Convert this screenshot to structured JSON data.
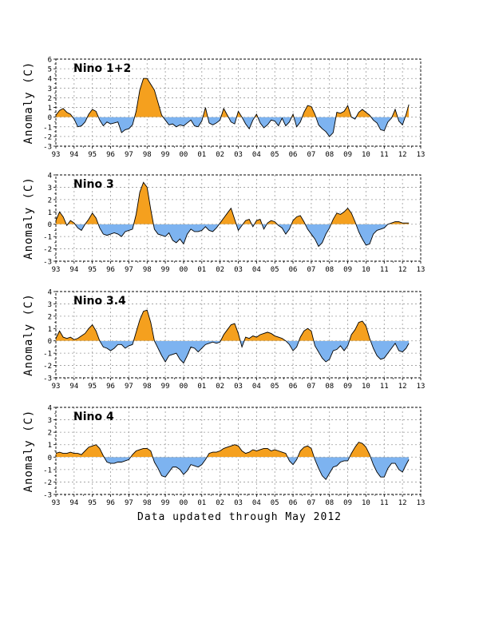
{
  "footer": "Data updated through May 2012",
  "colors": {
    "positive": "#f5a01e",
    "negative": "#7db3f0",
    "line": "#000000",
    "grid": "#9a9a9a"
  },
  "chart_data": [
    {
      "type": "area",
      "title": "Nino 1+2",
      "ylabel": "Anomaly (C)",
      "ylim": [
        -3,
        6
      ],
      "yticks": [
        -3,
        -2,
        -1,
        0,
        1,
        2,
        3,
        4,
        5,
        6
      ],
      "xlim": [
        1993,
        2013
      ],
      "xtick_labels": [
        "93",
        "94",
        "95",
        "96",
        "97",
        "98",
        "99",
        "00",
        "01",
        "02",
        "03",
        "04",
        "05",
        "06",
        "07",
        "08",
        "09",
        "10",
        "11",
        "12",
        "13"
      ],
      "grid": true,
      "series": [
        {
          "x": [
            1993.0,
            1993.2,
            1993.4,
            1993.6,
            1993.8,
            1994.0,
            1994.2,
            1994.4,
            1994.6,
            1994.8,
            1995.0,
            1995.2,
            1995.4,
            1995.6,
            1995.8,
            1996.0,
            1996.2,
            1996.4,
            1996.6,
            1996.8,
            1997.0,
            1997.2,
            1997.4,
            1997.6,
            1997.8,
            1998.0,
            1998.2,
            1998.4,
            1998.6,
            1998.8,
            1999.0,
            1999.2,
            1999.4,
            1999.6,
            1999.8,
            2000.0,
            2000.2,
            2000.4,
            2000.6,
            2000.8,
            2001.0,
            2001.2,
            2001.4,
            2001.6,
            2001.8,
            2002.0,
            2002.2,
            2002.4,
            2002.6,
            2002.8,
            2003.0,
            2003.2,
            2003.4,
            2003.6,
            2003.8,
            2004.0,
            2004.2,
            2004.4,
            2004.6,
            2004.8,
            2005.0,
            2005.2,
            2005.4,
            2005.6,
            2005.8,
            2006.0,
            2006.2,
            2006.4,
            2006.6,
            2006.8,
            2007.0,
            2007.2,
            2007.4,
            2007.6,
            2007.8,
            2008.0,
            2008.2,
            2008.4,
            2008.6,
            2008.8,
            2009.0,
            2009.2,
            2009.4,
            2009.6,
            2009.8,
            2010.0,
            2010.2,
            2010.4,
            2010.6,
            2010.8,
            2011.0,
            2011.2,
            2011.4,
            2011.6,
            2011.8,
            2012.0,
            2012.2,
            2012.35
          ],
          "values": [
            0.2,
            0.7,
            0.9,
            0.5,
            0.3,
            -0.2,
            -1.0,
            -0.9,
            -0.5,
            0.3,
            0.8,
            0.6,
            -0.3,
            -0.9,
            -0.5,
            -0.7,
            -0.6,
            -0.5,
            -1.6,
            -1.3,
            -1.2,
            -0.8,
            0.6,
            2.8,
            4.0,
            4.0,
            3.4,
            2.8,
            1.5,
            0.2,
            -0.3,
            -0.8,
            -0.7,
            -1.0,
            -0.8,
            -0.9,
            -0.6,
            -0.3,
            -0.9,
            -1.0,
            -0.4,
            1.0,
            -0.6,
            -0.8,
            -0.6,
            -0.3,
            0.9,
            0.2,
            -0.5,
            -0.7,
            0.6,
            0.0,
            -0.7,
            -1.2,
            -0.3,
            0.3,
            -0.6,
            -1.1,
            -0.8,
            -0.3,
            -0.4,
            -0.9,
            -0.1,
            -0.9,
            -0.5,
            0.3,
            -1.0,
            -0.5,
            0.5,
            1.2,
            1.1,
            0.3,
            -0.8,
            -1.2,
            -1.5,
            -2.0,
            -1.6,
            0.5,
            0.4,
            0.6,
            1.2,
            0.0,
            -0.2,
            0.5,
            0.8,
            0.5,
            0.2,
            -0.3,
            -0.6,
            -1.3,
            -1.4,
            -0.5,
            -0.1,
            0.8,
            -0.4,
            -0.8,
            0.3,
            1.3
          ]
        }
      ]
    },
    {
      "type": "area",
      "title": "Nino 3",
      "ylabel": "Anomaly (C)",
      "ylim": [
        -3,
        4
      ],
      "yticks": [
        -3,
        -2,
        -1,
        0,
        1,
        2,
        3,
        4
      ],
      "xlim": [
        1993,
        2013
      ],
      "xtick_labels": [
        "93",
        "94",
        "95",
        "96",
        "97",
        "98",
        "99",
        "00",
        "01",
        "02",
        "03",
        "04",
        "05",
        "06",
        "07",
        "08",
        "09",
        "10",
        "11",
        "12",
        "13"
      ],
      "grid": true,
      "series": [
        {
          "x": [
            1993.0,
            1993.2,
            1993.4,
            1993.6,
            1993.8,
            1994.0,
            1994.2,
            1994.4,
            1994.6,
            1994.8,
            1995.0,
            1995.2,
            1995.4,
            1995.6,
            1995.8,
            1996.0,
            1996.2,
            1996.4,
            1996.6,
            1996.8,
            1997.0,
            1997.2,
            1997.4,
            1997.6,
            1997.8,
            1998.0,
            1998.2,
            1998.4,
            1998.6,
            1998.8,
            1999.0,
            1999.2,
            1999.4,
            1999.6,
            1999.8,
            2000.0,
            2000.2,
            2000.4,
            2000.6,
            2000.8,
            2001.0,
            2001.2,
            2001.4,
            2001.6,
            2001.8,
            2002.0,
            2002.2,
            2002.4,
            2002.6,
            2002.8,
            2003.0,
            2003.2,
            2003.4,
            2003.6,
            2003.8,
            2004.0,
            2004.2,
            2004.4,
            2004.6,
            2004.8,
            2005.0,
            2005.2,
            2005.4,
            2005.6,
            2005.8,
            2006.0,
            2006.2,
            2006.4,
            2006.6,
            2006.8,
            2007.0,
            2007.2,
            2007.4,
            2007.6,
            2007.8,
            2008.0,
            2008.2,
            2008.4,
            2008.6,
            2008.8,
            2009.0,
            2009.2,
            2009.4,
            2009.6,
            2009.8,
            2010.0,
            2010.2,
            2010.4,
            2010.6,
            2010.8,
            2011.0,
            2011.2,
            2011.4,
            2011.6,
            2011.8,
            2012.0,
            2012.2,
            2012.35
          ],
          "values": [
            0.3,
            1.0,
            0.6,
            -0.1,
            0.3,
            0.1,
            -0.3,
            -0.5,
            0.0,
            0.4,
            0.9,
            0.5,
            -0.3,
            -0.8,
            -0.9,
            -0.8,
            -0.7,
            -0.8,
            -1.0,
            -0.6,
            -0.5,
            -0.4,
            0.8,
            2.6,
            3.4,
            3.0,
            1.2,
            -0.4,
            -0.8,
            -0.9,
            -1.0,
            -0.7,
            -1.3,
            -1.5,
            -1.2,
            -1.6,
            -0.8,
            -0.4,
            -0.6,
            -0.6,
            -0.5,
            -0.2,
            -0.5,
            -0.6,
            -0.3,
            0.1,
            0.5,
            0.9,
            1.3,
            0.4,
            -0.5,
            -0.1,
            0.3,
            0.4,
            -0.2,
            0.3,
            0.4,
            -0.4,
            0.1,
            0.3,
            0.2,
            -0.1,
            -0.3,
            -0.8,
            -0.4,
            0.3,
            0.6,
            0.7,
            0.2,
            -0.4,
            -0.8,
            -1.2,
            -1.8,
            -1.5,
            -0.8,
            -0.3,
            0.4,
            0.9,
            0.8,
            1.0,
            1.3,
            0.9,
            0.2,
            -0.6,
            -1.2,
            -1.7,
            -1.6,
            -0.8,
            -0.5,
            -0.4,
            -0.3,
            0.0,
            0.1,
            0.2,
            0.2,
            0.1,
            0.1,
            0.1
          ]
        }
      ]
    },
    {
      "type": "area",
      "title": "Nino 3.4",
      "ylabel": "Anomaly (C)",
      "ylim": [
        -3,
        4
      ],
      "yticks": [
        -3,
        -2,
        -1,
        0,
        1,
        2,
        3,
        4
      ],
      "xlim": [
        1993,
        2013
      ],
      "xtick_labels": [
        "93",
        "94",
        "95",
        "96",
        "97",
        "98",
        "99",
        "00",
        "01",
        "02",
        "03",
        "04",
        "05",
        "06",
        "07",
        "08",
        "09",
        "10",
        "11",
        "12",
        "13"
      ],
      "grid": true,
      "series": [
        {
          "x": [
            1993.0,
            1993.2,
            1993.4,
            1993.6,
            1993.8,
            1994.0,
            1994.2,
            1994.4,
            1994.6,
            1994.8,
            1995.0,
            1995.2,
            1995.4,
            1995.6,
            1995.8,
            1996.0,
            1996.2,
            1996.4,
            1996.6,
            1996.8,
            1997.0,
            1997.2,
            1997.4,
            1997.6,
            1997.8,
            1998.0,
            1998.2,
            1998.4,
            1998.6,
            1998.8,
            1999.0,
            1999.2,
            1999.4,
            1999.6,
            1999.8,
            2000.0,
            2000.2,
            2000.4,
            2000.6,
            2000.8,
            2001.0,
            2001.2,
            2001.4,
            2001.6,
            2001.8,
            2002.0,
            2002.2,
            2002.4,
            2002.6,
            2002.8,
            2003.0,
            2003.2,
            2003.4,
            2003.6,
            2003.8,
            2004.0,
            2004.2,
            2004.4,
            2004.6,
            2004.8,
            2005.0,
            2005.2,
            2005.4,
            2005.6,
            2005.8,
            2006.0,
            2006.2,
            2006.4,
            2006.6,
            2006.8,
            2007.0,
            2007.2,
            2007.4,
            2007.6,
            2007.8,
            2008.0,
            2008.2,
            2008.4,
            2008.6,
            2008.8,
            2009.0,
            2009.2,
            2009.4,
            2009.6,
            2009.8,
            2010.0,
            2010.2,
            2010.4,
            2010.6,
            2010.8,
            2011.0,
            2011.2,
            2011.4,
            2011.6,
            2011.8,
            2012.0,
            2012.2,
            2012.35
          ],
          "values": [
            0.2,
            0.8,
            0.3,
            0.2,
            0.3,
            0.1,
            0.2,
            0.4,
            0.6,
            1.0,
            1.3,
            0.8,
            0.0,
            -0.5,
            -0.6,
            -0.8,
            -0.6,
            -0.3,
            -0.3,
            -0.6,
            -0.4,
            -0.3,
            0.7,
            1.7,
            2.4,
            2.5,
            1.5,
            0.0,
            -0.6,
            -1.2,
            -1.7,
            -1.2,
            -1.1,
            -1.0,
            -1.5,
            -1.8,
            -1.2,
            -0.5,
            -0.6,
            -0.9,
            -0.6,
            -0.3,
            -0.2,
            -0.1,
            -0.2,
            -0.1,
            0.5,
            0.9,
            1.3,
            1.4,
            0.6,
            -0.5,
            0.3,
            0.2,
            0.4,
            0.3,
            0.5,
            0.6,
            0.7,
            0.6,
            0.4,
            0.3,
            0.2,
            0.0,
            -0.3,
            -0.8,
            -0.5,
            0.3,
            0.8,
            1.0,
            0.8,
            -0.4,
            -0.9,
            -1.4,
            -1.7,
            -1.5,
            -0.8,
            -0.7,
            -0.4,
            -0.8,
            -0.4,
            0.5,
            0.9,
            1.5,
            1.6,
            1.2,
            0.2,
            -0.6,
            -1.2,
            -1.5,
            -1.4,
            -1.0,
            -0.6,
            -0.2,
            -0.8,
            -0.9,
            -0.6,
            -0.2
          ]
        }
      ]
    },
    {
      "type": "area",
      "title": "Nino 4",
      "ylabel": "Anomaly (C)",
      "ylim": [
        -3,
        4
      ],
      "yticks": [
        -3,
        -2,
        -1,
        0,
        1,
        2,
        3,
        4
      ],
      "xlim": [
        1993,
        2013
      ],
      "xtick_labels": [
        "93",
        "94",
        "95",
        "96",
        "97",
        "98",
        "99",
        "00",
        "01",
        "02",
        "03",
        "04",
        "05",
        "06",
        "07",
        "08",
        "09",
        "10",
        "11",
        "12",
        "13"
      ],
      "grid": true,
      "series": [
        {
          "x": [
            1993.0,
            1993.2,
            1993.4,
            1993.6,
            1993.8,
            1994.0,
            1994.2,
            1994.4,
            1994.6,
            1994.8,
            1995.0,
            1995.2,
            1995.4,
            1995.6,
            1995.8,
            1996.0,
            1996.2,
            1996.4,
            1996.6,
            1996.8,
            1997.0,
            1997.2,
            1997.4,
            1997.6,
            1997.8,
            1998.0,
            1998.2,
            1998.4,
            1998.6,
            1998.8,
            1999.0,
            1999.2,
            1999.4,
            1999.6,
            1999.8,
            2000.0,
            2000.2,
            2000.4,
            2000.6,
            2000.8,
            2001.0,
            2001.2,
            2001.4,
            2001.6,
            2001.8,
            2002.0,
            2002.2,
            2002.4,
            2002.6,
            2002.8,
            2003.0,
            2003.2,
            2003.4,
            2003.6,
            2003.8,
            2004.0,
            2004.2,
            2004.4,
            2004.6,
            2004.8,
            2005.0,
            2005.2,
            2005.4,
            2005.6,
            2005.8,
            2006.0,
            2006.2,
            2006.4,
            2006.6,
            2006.8,
            2007.0,
            2007.2,
            2007.4,
            2007.6,
            2007.8,
            2008.0,
            2008.2,
            2008.4,
            2008.6,
            2008.8,
            2009.0,
            2009.2,
            2009.4,
            2009.6,
            2009.8,
            2010.0,
            2010.2,
            2010.4,
            2010.6,
            2010.8,
            2011.0,
            2011.2,
            2011.4,
            2011.6,
            2011.8,
            2012.0,
            2012.2,
            2012.35
          ],
          "values": [
            0.3,
            0.4,
            0.3,
            0.3,
            0.4,
            0.3,
            0.3,
            0.2,
            0.5,
            0.8,
            0.9,
            1.0,
            0.7,
            0.1,
            -0.4,
            -0.5,
            -0.5,
            -0.4,
            -0.4,
            -0.3,
            -0.2,
            0.2,
            0.5,
            0.6,
            0.7,
            0.7,
            0.5,
            -0.4,
            -0.9,
            -1.5,
            -1.6,
            -1.2,
            -0.8,
            -0.8,
            -1.0,
            -1.4,
            -1.1,
            -0.6,
            -0.7,
            -0.8,
            -0.6,
            -0.2,
            0.3,
            0.4,
            0.4,
            0.5,
            0.7,
            0.8,
            0.9,
            1.0,
            0.9,
            0.5,
            0.3,
            0.4,
            0.6,
            0.5,
            0.6,
            0.7,
            0.7,
            0.5,
            0.6,
            0.5,
            0.4,
            0.3,
            -0.3,
            -0.6,
            -0.2,
            0.5,
            0.8,
            0.9,
            0.7,
            -0.2,
            -0.9,
            -1.5,
            -1.8,
            -1.3,
            -0.8,
            -0.7,
            -0.4,
            -0.3,
            -0.3,
            0.3,
            0.8,
            1.2,
            1.1,
            0.8,
            0.2,
            -0.6,
            -1.2,
            -1.6,
            -1.6,
            -0.9,
            -0.5,
            -0.5,
            -1.0,
            -1.2,
            -0.6,
            -0.2
          ]
        }
      ]
    }
  ]
}
